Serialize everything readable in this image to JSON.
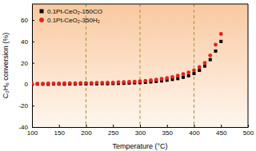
{
  "chart_data": {
    "type": "scatter",
    "x_label": "Temperature (°C)",
    "y_label": "C₂H₆ conversion (%)",
    "x": [
      100,
      110,
      120,
      130,
      140,
      150,
      160,
      170,
      180,
      190,
      200,
      210,
      220,
      230,
      240,
      250,
      260,
      270,
      280,
      290,
      300,
      310,
      320,
      330,
      340,
      350,
      360,
      370,
      380,
      390,
      400,
      410,
      420,
      430,
      440,
      450
    ],
    "series": [
      {
        "name": "0.1Pt-CeO₂-150CO",
        "color": "#000000",
        "marker": "square",
        "values": [
          0,
          0.2,
          0.1,
          0,
          0.3,
          0.2,
          0.1,
          0.3,
          0.2,
          0.4,
          0.3,
          0.5,
          0.4,
          0.6,
          0.5,
          0.7,
          0.8,
          0.9,
          1.1,
          1.3,
          1.5,
          1.8,
          2.2,
          2.6,
          3.1,
          3.8,
          4.5,
          5.3,
          6.5,
          8,
          10,
          13,
          17,
          23,
          31,
          40
        ]
      },
      {
        "name": "0.1Pt-CeO₂-350H₂",
        "color": "#e8221b",
        "marker": "circle",
        "values": [
          0.5,
          0.6,
          0.5,
          0.7,
          0.8,
          0.7,
          0.9,
          1.0,
          0.9,
          1.1,
          1.2,
          1.1,
          1.3,
          1.4,
          1.5,
          1.6,
          1.8,
          2.0,
          2.2,
          2.5,
          2.8,
          3.2,
          3.7,
          4.3,
          5.0,
          5.8,
          6.8,
          8.0,
          9.5,
          11,
          13,
          16,
          20,
          27,
          37,
          47
        ]
      }
    ],
    "xlim": [
      100,
      500
    ],
    "xticks": [
      100,
      150,
      200,
      250,
      300,
      350,
      400,
      450,
      500
    ],
    "ylim": [
      -40,
      75
    ],
    "yticks": [
      -40,
      -20,
      0,
      20,
      40,
      60
    ],
    "legend": "upper left"
  }
}
